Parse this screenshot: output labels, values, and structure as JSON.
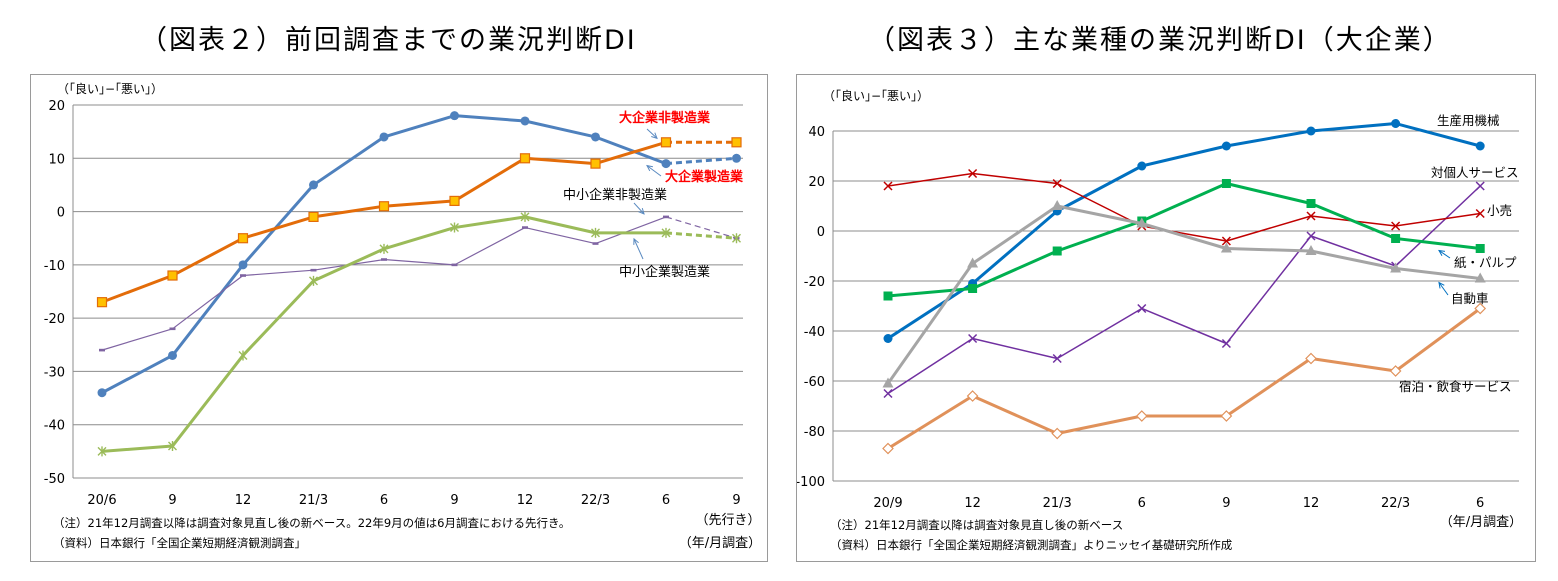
{
  "colors": {
    "large_manufacturing": "#4f81bd",
    "large_nonmanufacturing": "#e36c09",
    "sme_nonmanufacturing": "#7f64a2",
    "sme_manufacturing": "#9bbb59",
    "machinery": "#0070c0",
    "personal_services": "#7030a0",
    "retail": "#c00000",
    "paper_pulp": "#00b050",
    "automobiles": "#a5a5a5",
    "accommodation": "#e0915a",
    "label_red": "#ff0000"
  },
  "chart_data": [
    {
      "type": "line",
      "title": "（図表２）前回調査までの業況判断DI",
      "ylabel": "（｢良い｣−｢悪い｣）",
      "xlabel": "（年/月調査）",
      "forecast_label": "（先行き）",
      "categories": [
        "20/6",
        "9",
        "12",
        "21/3",
        "6",
        "9",
        "12",
        "22/3",
        "6",
        "9"
      ],
      "ylim": [
        -50,
        20
      ],
      "yticks": [
        20,
        10,
        0,
        -10,
        -20,
        -30,
        -40,
        -50
      ],
      "grid": true,
      "series": [
        {
          "name": "大企業製造業",
          "key": "large_manufacturing",
          "values": [
            -34,
            -27,
            -10,
            5,
            14,
            18,
            17,
            14,
            9,
            10
          ],
          "marker": "circle",
          "forecast_from": 8
        },
        {
          "name": "大企業非製造業",
          "key": "large_nonmanufacturing",
          "values": [
            -17,
            -12,
            -5,
            -1,
            1,
            2,
            10,
            9,
            13,
            13
          ],
          "marker": "square",
          "forecast_from": 8
        },
        {
          "name": "中小企業非製造業",
          "key": "sme_nonmanufacturing",
          "values": [
            -26,
            -22,
            -12,
            -11,
            -9,
            -10,
            -3,
            -6,
            -1,
            -5
          ],
          "marker": "dash",
          "forecast_from": 8
        },
        {
          "name": "中小企業製造業",
          "key": "sme_manufacturing",
          "values": [
            -45,
            -44,
            -27,
            -13,
            -7,
            -3,
            -1,
            -4,
            -4,
            -5
          ],
          "marker": "star",
          "forecast_from": 8
        }
      ],
      "notes": [
        "（注）21年12月調査以降は調査対象見直し後の新ベース。22年9月の値は6月調査における先行き。",
        "（資料）日本銀行「全国企業短期経済観測調査」"
      ]
    },
    {
      "type": "line",
      "title": "（図表３）主な業種の業況判断DI（大企業）",
      "ylabel": "（｢良い｣−｢悪い｣）",
      "xlabel": "（年/月調査）",
      "categories": [
        "20/9",
        "12",
        "21/3",
        "6",
        "9",
        "12",
        "22/3",
        "6"
      ],
      "ylim": [
        -100,
        40
      ],
      "yticks": [
        40,
        20,
        0,
        -20,
        -40,
        -60,
        -80,
        -100
      ],
      "grid": true,
      "series": [
        {
          "name": "生産用機械",
          "key": "machinery",
          "values": [
            -43,
            -21,
            8,
            26,
            34,
            40,
            43,
            34
          ],
          "marker": "circle"
        },
        {
          "name": "対個人サービス",
          "key": "personal_services",
          "values": [
            -65,
            -43,
            -51,
            -31,
            -45,
            -2,
            -14,
            18
          ],
          "marker": "x"
        },
        {
          "name": "小売",
          "key": "retail",
          "values": [
            18,
            23,
            19,
            2,
            -4,
            6,
            2,
            7
          ],
          "marker": "x"
        },
        {
          "name": "紙・パルプ",
          "key": "paper_pulp",
          "values": [
            -26,
            -23,
            -8,
            4,
            19,
            11,
            -3,
            -7
          ],
          "marker": "square"
        },
        {
          "name": "自動車",
          "key": "automobiles",
          "values": [
            -61,
            -13,
            10,
            3,
            -7,
            -8,
            -15,
            -19
          ],
          "marker": "triangle"
        },
        {
          "name": "宿泊・飲食サービス",
          "key": "accommodation",
          "values": [
            -87,
            -66,
            -81,
            -74,
            -74,
            -51,
            -56,
            -31
          ],
          "marker": "diamond"
        }
      ],
      "notes": [
        "（注）21年12月調査以降は調査対象見直し後の新ベース",
        "（資料）日本銀行「全国企業短期経済観測調査」よりニッセイ基礎研究所作成"
      ]
    }
  ]
}
